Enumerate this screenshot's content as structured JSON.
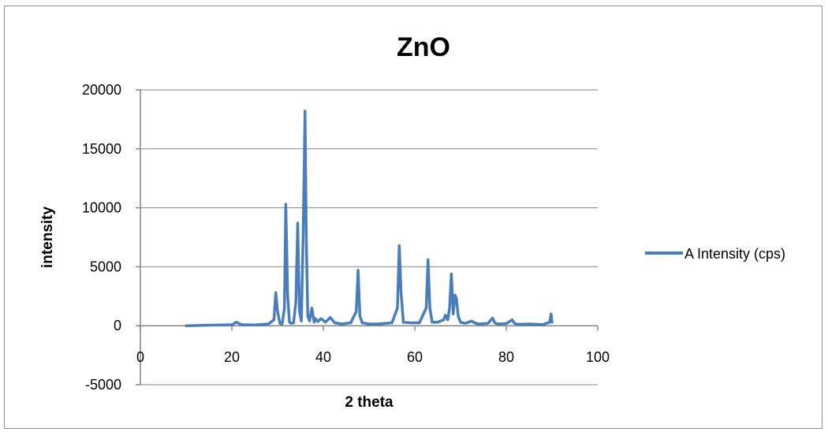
{
  "chart_data": {
    "type": "line",
    "title": "ZnO",
    "xlabel": "2 theta",
    "ylabel": "intensity",
    "xlim": [
      0,
      100
    ],
    "ylim": [
      -5000,
      20000
    ],
    "x_ticks": [
      0,
      20,
      40,
      60,
      80,
      100
    ],
    "y_ticks": [
      -5000,
      0,
      5000,
      10000,
      15000,
      20000
    ],
    "x_tick_labels": [
      "0",
      "20",
      "40",
      "60",
      "80",
      "100"
    ],
    "y_tick_labels": [
      "-5000",
      "0",
      "5000",
      "10000",
      "15000",
      "20000"
    ],
    "grid": "horizontal",
    "legend_position": "right",
    "series": [
      {
        "name": "A Intensity (cps)",
        "color": "#4a7ebb",
        "x": [
          10,
          15,
          20,
          21,
          22,
          25,
          28,
          29.2,
          29.6,
          30.0,
          30.5,
          31.0,
          31.5,
          31.8,
          32.2,
          32.6,
          33.0,
          33.5,
          34.0,
          34.4,
          34.8,
          35.2,
          35.6,
          36.0,
          36.3,
          36.6,
          37.0,
          37.5,
          38.0,
          38.3,
          38.8,
          39.5,
          40.5,
          41.5,
          42.5,
          44,
          46,
          47.2,
          47.6,
          48.0,
          48.5,
          50,
          52,
          55,
          56.2,
          56.6,
          57.0,
          57.5,
          59,
          61,
          62.5,
          62.9,
          63.3,
          63.8,
          65,
          66.3,
          66.7,
          67.2,
          67.6,
          68.0,
          68.4,
          68.8,
          69.1,
          69.5,
          70.0,
          71,
          72.5,
          73,
          74,
          76,
          77,
          77.5,
          78,
          80,
          81.3,
          81.8,
          82.5,
          85,
          88,
          89.5,
          89.8,
          90.0
        ],
        "values": [
          0,
          50,
          80,
          300,
          100,
          60,
          150,
          500,
          2800,
          1200,
          200,
          150,
          1500,
          10300,
          2500,
          300,
          200,
          250,
          2000,
          8700,
          1200,
          400,
          8000,
          18200,
          7000,
          800,
          400,
          1500,
          300,
          600,
          350,
          600,
          300,
          700,
          250,
          150,
          250,
          1200,
          4700,
          800,
          250,
          150,
          150,
          250,
          1500,
          6800,
          2800,
          300,
          250,
          250,
          1500,
          5600,
          1500,
          300,
          300,
          500,
          900,
          500,
          1500,
          4400,
          1000,
          2600,
          2300,
          800,
          300,
          200,
          400,
          250,
          150,
          200,
          650,
          250,
          150,
          180,
          500,
          200,
          120,
          150,
          100,
          300,
          1000,
          300
        ]
      }
    ]
  }
}
